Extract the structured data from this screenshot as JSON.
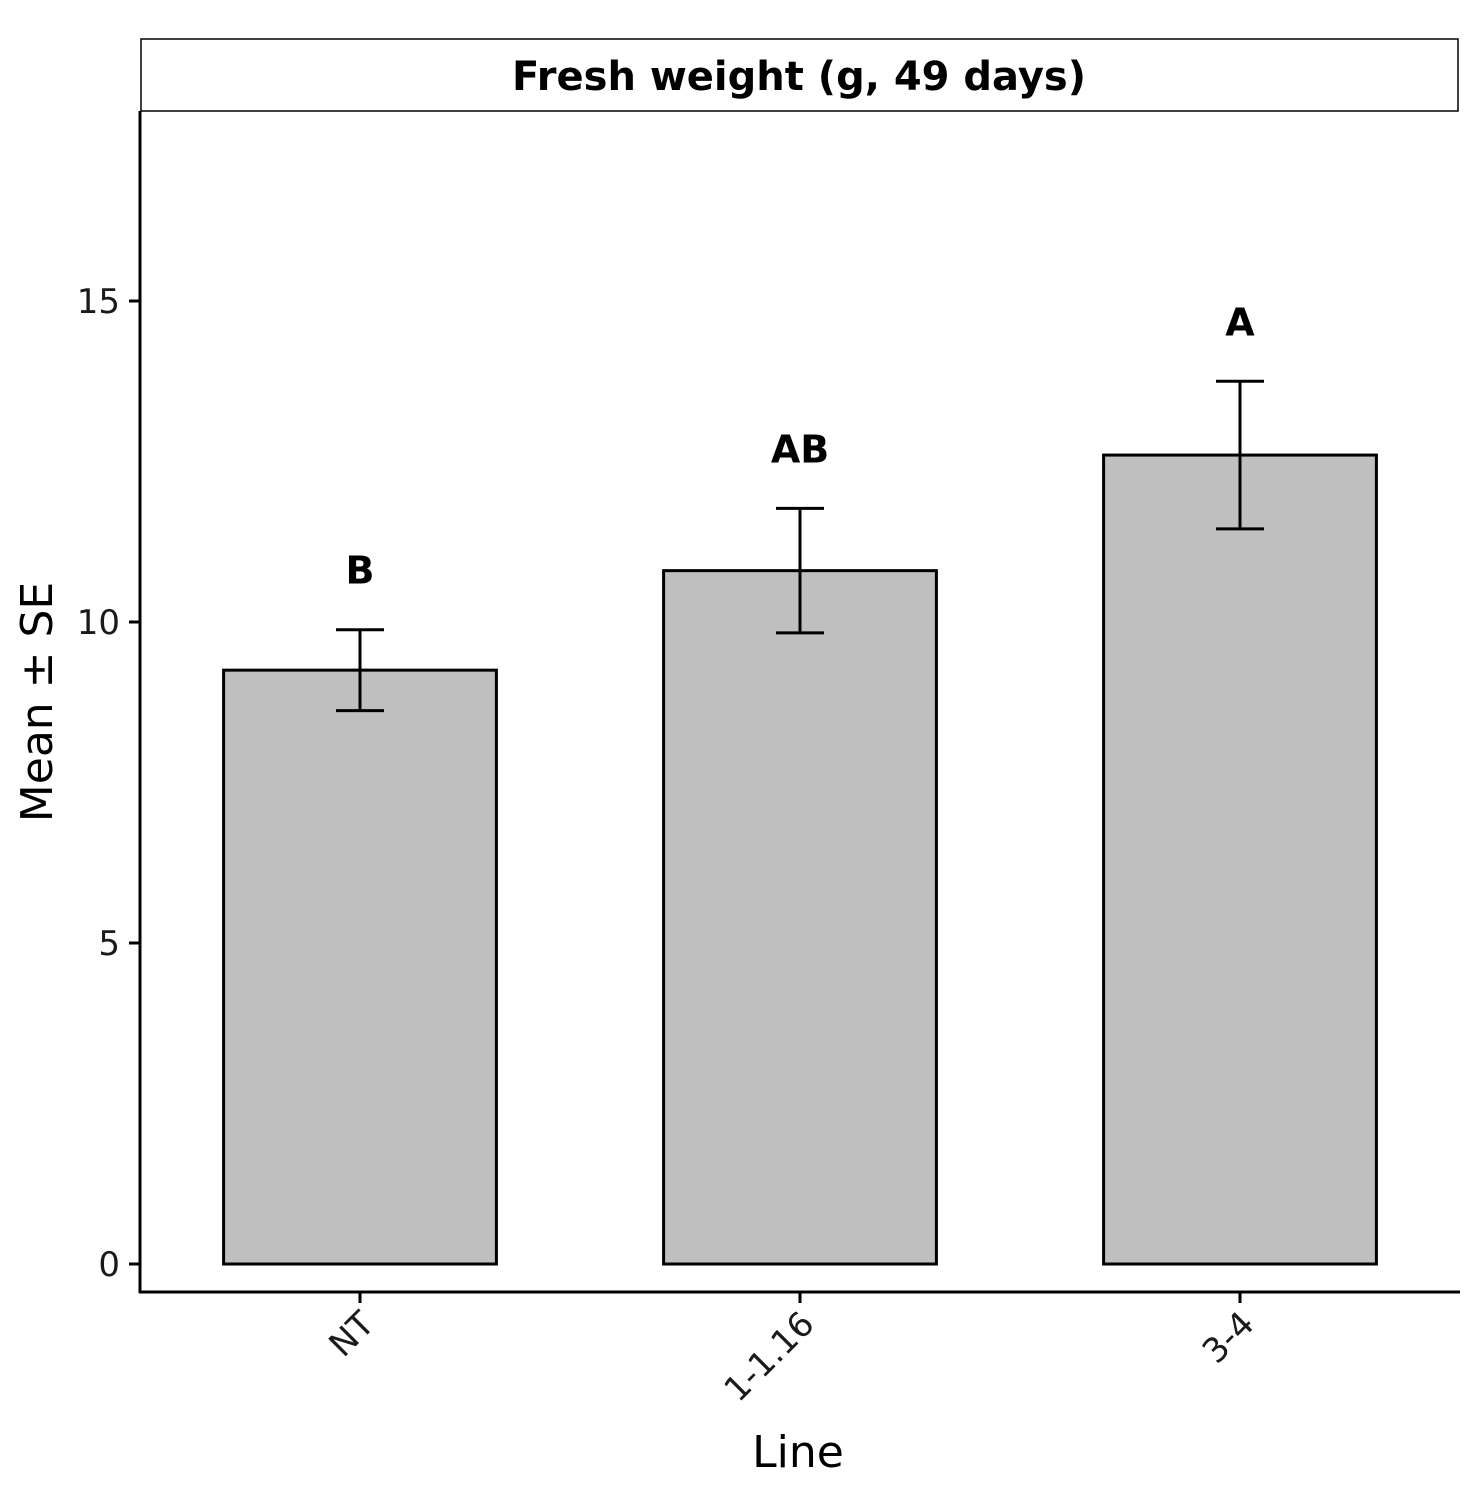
{
  "chart_data": {
    "type": "bar",
    "title": "Fresh weight (g, 49 days)",
    "xlabel": "Line",
    "ylabel": "Mean ± SE",
    "categories": [
      "NT",
      "1-1.16",
      "3-4"
    ],
    "values": [
      9.25,
      10.8,
      12.6
    ],
    "errors": [
      0.63,
      0.97,
      1.15
    ],
    "significance": [
      "B",
      "AB",
      "A"
    ],
    "ylim": [
      -0.4,
      18
    ],
    "yticks": [
      0,
      5,
      10,
      15
    ],
    "grid": false,
    "colors": {
      "bar_fill": "#bfbfbf",
      "bar_stroke": "#000000"
    }
  }
}
